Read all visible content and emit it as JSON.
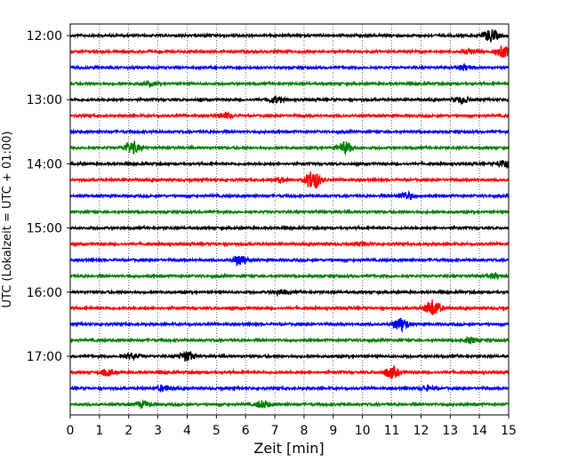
{
  "chart_data": {
    "type": "line",
    "title": "",
    "xlabel": "Zeit  [min]",
    "ylabel": "UTC (Lokalzeit = UTC + 01:00)",
    "xlim": [
      0,
      15
    ],
    "x_ticks": [
      0,
      1,
      2,
      3,
      4,
      5,
      6,
      7,
      8,
      9,
      10,
      11,
      12,
      13,
      14,
      15
    ],
    "grid": "vertical dotted",
    "y_tick_labels": [
      "12:00",
      "13:00",
      "14:00",
      "15:00",
      "16:00",
      "17:00"
    ],
    "trace_interval_min": 15,
    "start_time": "12:00",
    "series_colors": [
      "#000000",
      "#ff0000",
      "#0000ff",
      "#008000"
    ],
    "traces": [
      {
        "time": "12:00",
        "color": "#000000",
        "events": [
          {
            "t": 14.4,
            "amp": 2.2
          }
        ]
      },
      {
        "time": "12:15",
        "color": "#ff0000",
        "events": [
          {
            "t": 14.8,
            "amp": 2.0
          },
          {
            "t": 13.7,
            "amp": 0.8
          }
        ]
      },
      {
        "time": "12:30",
        "color": "#0000ff",
        "events": [
          {
            "t": 13.5,
            "amp": 0.9
          }
        ]
      },
      {
        "time": "12:45",
        "color": "#008000",
        "events": [
          {
            "t": 2.7,
            "amp": 0.6
          }
        ]
      },
      {
        "time": "13:00",
        "color": "#000000",
        "events": [
          {
            "t": 7.0,
            "amp": 1.2
          },
          {
            "t": 13.4,
            "amp": 1.1
          }
        ]
      },
      {
        "time": "13:15",
        "color": "#ff0000",
        "events": [
          {
            "t": 5.3,
            "amp": 1.0
          }
        ]
      },
      {
        "time": "13:30",
        "color": "#0000ff",
        "events": []
      },
      {
        "time": "13:45",
        "color": "#008000",
        "events": [
          {
            "t": 2.1,
            "amp": 2.2
          },
          {
            "t": 9.4,
            "amp": 2.0
          }
        ]
      },
      {
        "time": "14:00",
        "color": "#000000",
        "events": [
          {
            "t": 14.9,
            "amp": 1.5
          }
        ]
      },
      {
        "time": "14:15",
        "color": "#ff0000",
        "events": [
          {
            "t": 8.3,
            "amp": 3.6
          },
          {
            "t": 7.2,
            "amp": 0.8
          }
        ]
      },
      {
        "time": "14:30",
        "color": "#0000ff",
        "events": [
          {
            "t": 11.5,
            "amp": 1.3
          }
        ]
      },
      {
        "time": "14:45",
        "color": "#008000",
        "events": []
      },
      {
        "time": "15:00",
        "color": "#000000",
        "events": []
      },
      {
        "time": "15:15",
        "color": "#ff0000",
        "events": [
          {
            "t": 10.0,
            "amp": 0.6
          }
        ]
      },
      {
        "time": "15:30",
        "color": "#0000ff",
        "events": [
          {
            "t": 5.8,
            "amp": 1.8
          }
        ]
      },
      {
        "time": "15:45",
        "color": "#008000",
        "events": [
          {
            "t": 14.5,
            "amp": 0.8
          }
        ]
      },
      {
        "time": "16:00",
        "color": "#000000",
        "events": [
          {
            "t": 7.2,
            "amp": 0.8
          }
        ]
      },
      {
        "time": "16:15",
        "color": "#ff0000",
        "events": [
          {
            "t": 12.4,
            "amp": 3.0
          }
        ]
      },
      {
        "time": "16:30",
        "color": "#0000ff",
        "events": [
          {
            "t": 11.3,
            "amp": 2.4
          }
        ]
      },
      {
        "time": "16:45",
        "color": "#008000",
        "events": [
          {
            "t": 13.7,
            "amp": 0.8
          }
        ]
      },
      {
        "time": "17:00",
        "color": "#000000",
        "events": [
          {
            "t": 4.0,
            "amp": 1.8
          },
          {
            "t": 2.1,
            "amp": 1.0
          }
        ]
      },
      {
        "time": "17:15",
        "color": "#ff0000",
        "events": [
          {
            "t": 11.0,
            "amp": 2.0
          },
          {
            "t": 1.3,
            "amp": 1.1
          }
        ]
      },
      {
        "time": "17:30",
        "color": "#0000ff",
        "events": [
          {
            "t": 3.2,
            "amp": 1.0
          },
          {
            "t": 12.2,
            "amp": 0.8
          }
        ]
      },
      {
        "time": "17:45",
        "color": "#008000",
        "events": [
          {
            "t": 6.6,
            "amp": 1.3
          },
          {
            "t": 2.5,
            "amp": 1.0
          }
        ]
      }
    ]
  }
}
